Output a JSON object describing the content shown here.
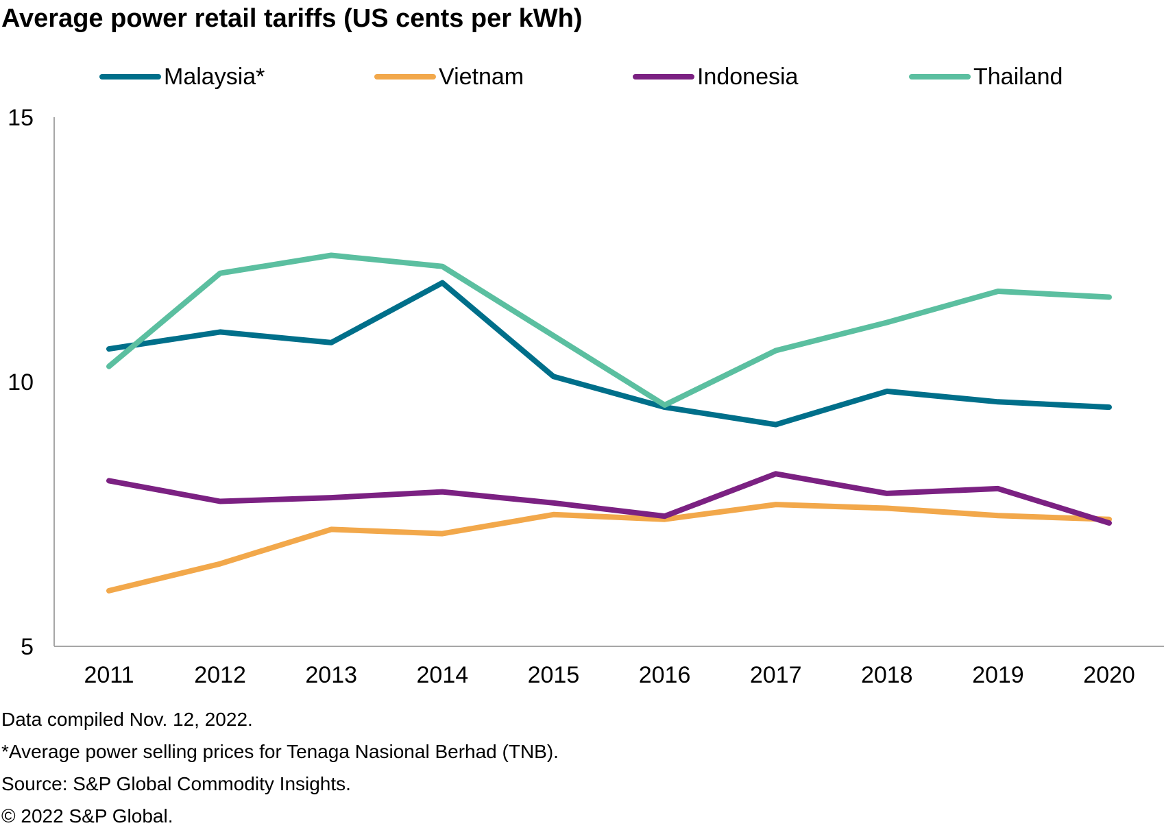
{
  "chart_data": {
    "type": "line",
    "title": "Average power retail tariffs (US cents per kWh)",
    "xlabel": "",
    "ylabel": "",
    "x": [
      "2011",
      "2012",
      "2013",
      "2014",
      "2015",
      "2016",
      "2017",
      "2018",
      "2019",
      "2020"
    ],
    "ylim": [
      5,
      15
    ],
    "yticks": [
      5,
      10,
      15
    ],
    "grid": false,
    "legend": "top",
    "series": [
      {
        "name": "Malaysia*",
        "color": "#006F8A",
        "values": [
          10.62,
          10.94,
          10.74,
          11.87,
          10.1,
          9.52,
          9.19,
          9.82,
          9.62,
          9.52
        ]
      },
      {
        "name": "Vietnam",
        "color": "#F2A84B",
        "values": [
          6.05,
          6.56,
          7.21,
          7.13,
          7.49,
          7.4,
          7.68,
          7.61,
          7.47,
          7.4
        ]
      },
      {
        "name": "Indonesia",
        "color": "#7B2182",
        "values": [
          8.13,
          7.74,
          7.81,
          7.92,
          7.71,
          7.46,
          8.26,
          7.89,
          7.98,
          7.33
        ]
      },
      {
        "name": "Thailand",
        "color": "#5BBFA0",
        "values": [
          10.29,
          12.05,
          12.39,
          12.18,
          10.87,
          9.56,
          10.59,
          11.12,
          11.71,
          11.6
        ]
      }
    ]
  },
  "notes": [
    "Data compiled Nov. 12, 2022.",
    "*Average power selling prices for Tenaga Nasional Berhad (TNB).",
    "Source: S&P Global Commodity Insights.",
    "© 2022 S&P Global."
  ]
}
